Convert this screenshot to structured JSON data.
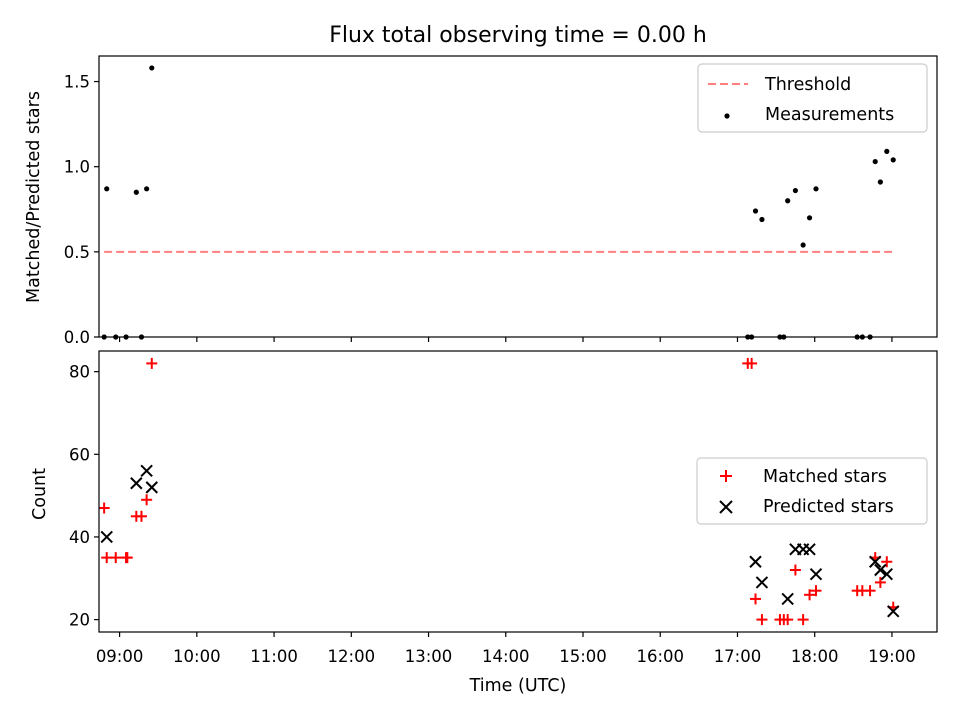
{
  "chart_data": [
    {
      "type": "scatter",
      "title": "Flux total observing time = 0.00 h",
      "xlabel": "",
      "ylabel": "Matched/Predicted stars",
      "xlim": [
        "08:44",
        "19:35"
      ],
      "ylim": [
        0,
        1.65
      ],
      "y_ticks": [
        "0.0",
        "0.5",
        "1.0",
        "1.5"
      ],
      "grid": false,
      "legend_position": "top-right",
      "threshold": {
        "name": "Threshold",
        "y": 0.5,
        "x_start": "08:48",
        "x_end": "19:00",
        "color": "#ff7f7f",
        "style": "dashed"
      },
      "series": [
        {
          "name": "Measurements",
          "color": "#000000",
          "marker": "dot",
          "points": [
            [
              "08:48",
              0.0
            ],
            [
              "08:50",
              0.87
            ],
            [
              "08:57",
              0.0
            ],
            [
              "09:05",
              0.0
            ],
            [
              "09:13",
              0.85
            ],
            [
              "09:17",
              0.0
            ],
            [
              "09:21",
              0.87
            ],
            [
              "09:25",
              1.58
            ],
            [
              "17:08",
              0.0
            ],
            [
              "17:11",
              0.0
            ],
            [
              "17:14",
              0.74
            ],
            [
              "17:19",
              0.69
            ],
            [
              "17:33",
              0.0
            ],
            [
              "17:36",
              0.0
            ],
            [
              "17:39",
              0.8
            ],
            [
              "17:45",
              0.86
            ],
            [
              "17:51",
              0.54
            ],
            [
              "17:56",
              0.7
            ],
            [
              "18:01",
              0.87
            ],
            [
              "18:33",
              0.0
            ],
            [
              "18:37",
              0.0
            ],
            [
              "18:43",
              0.0
            ],
            [
              "18:47",
              1.03
            ],
            [
              "18:51",
              0.91
            ],
            [
              "18:56",
              1.09
            ],
            [
              "19:01",
              1.04
            ]
          ]
        }
      ]
    },
    {
      "type": "scatter",
      "title": "",
      "xlabel": "Time (UTC)",
      "ylabel": "Count",
      "xlim": [
        "08:44",
        "19:35"
      ],
      "ylim": [
        17,
        85
      ],
      "x_ticks": [
        "09:00",
        "10:00",
        "11:00",
        "12:00",
        "13:00",
        "14:00",
        "15:00",
        "16:00",
        "17:00",
        "18:00",
        "19:00"
      ],
      "y_ticks": [
        "20",
        "40",
        "60",
        "80"
      ],
      "grid": false,
      "legend_position": "center-right",
      "series": [
        {
          "name": "Matched stars",
          "color": "#ff0000",
          "marker": "plus",
          "points": [
            [
              "08:48",
              47
            ],
            [
              "08:50",
              35
            ],
            [
              "08:57",
              35
            ],
            [
              "09:05",
              35
            ],
            [
              "09:06",
              35
            ],
            [
              "09:13",
              45
            ],
            [
              "09:17",
              45
            ],
            [
              "09:21",
              49
            ],
            [
              "09:25",
              82
            ],
            [
              "17:08",
              82
            ],
            [
              "17:11",
              82
            ],
            [
              "17:14",
              25
            ],
            [
              "17:19",
              20
            ],
            [
              "17:33",
              20
            ],
            [
              "17:36",
              20
            ],
            [
              "17:39",
              20
            ],
            [
              "17:45",
              32
            ],
            [
              "17:51",
              20
            ],
            [
              "17:56",
              26
            ],
            [
              "18:01",
              27
            ],
            [
              "18:33",
              27
            ],
            [
              "18:37",
              27
            ],
            [
              "18:43",
              27
            ],
            [
              "18:47",
              35
            ],
            [
              "18:51",
              29
            ],
            [
              "18:56",
              34
            ],
            [
              "19:01",
              23
            ]
          ]
        },
        {
          "name": "Predicted stars",
          "color": "#000000",
          "marker": "x",
          "points": [
            [
              "08:50",
              40
            ],
            [
              "09:13",
              53
            ],
            [
              "09:21",
              56
            ],
            [
              "09:25",
              52
            ],
            [
              "17:14",
              34
            ],
            [
              "17:19",
              29
            ],
            [
              "17:39",
              25
            ],
            [
              "17:45",
              37
            ],
            [
              "17:51",
              37
            ],
            [
              "17:56",
              37
            ],
            [
              "18:01",
              31
            ],
            [
              "18:47",
              34
            ],
            [
              "18:51",
              32
            ],
            [
              "18:56",
              31
            ],
            [
              "19:01",
              22
            ]
          ]
        }
      ]
    }
  ]
}
